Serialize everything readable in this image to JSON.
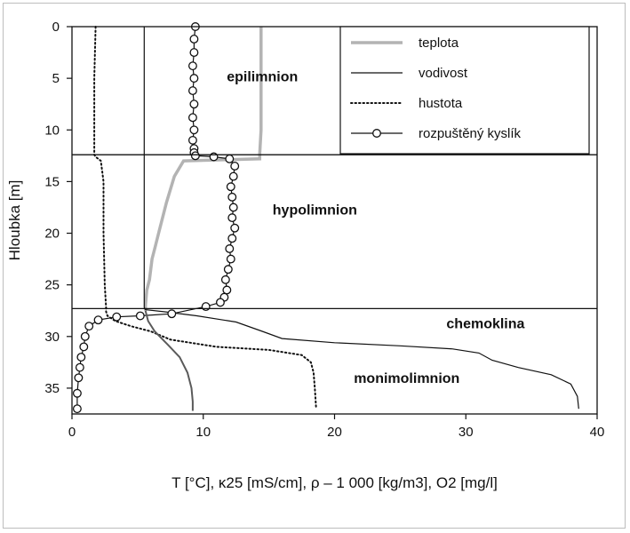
{
  "chart_data": {
    "type": "line",
    "xlabel": "T [°C], κ25 [mS/cm], ρ – 1 000 [kg/m3], O2 [mg/l]",
    "ylabel": "Hloubka [m]",
    "xlim": [
      0,
      40
    ],
    "ylim": [
      0,
      37.5
    ],
    "y_inverted": true,
    "x_ticks": [
      "0",
      "10",
      "20",
      "30",
      "40"
    ],
    "y_ticks": [
      "0",
      "5",
      "10",
      "15",
      "20",
      "25",
      "30",
      "35"
    ],
    "boundaries": [
      12.4,
      27.3
    ],
    "zones": [
      {
        "label": "epilimnion",
        "x": 14.5,
        "y": 5.3
      },
      {
        "label": "hypolimnion",
        "x": 18.5,
        "y": 18.2
      },
      {
        "label": "chemoklina",
        "x": 31.5,
        "y": 29.2
      },
      {
        "label": "monimolimnion",
        "x": 25.5,
        "y": 34.5
      }
    ],
    "legend_position": "top-right",
    "series": [
      {
        "name": "teplota",
        "style": "thick-gray",
        "color": "#b3b3b3",
        "x": [
          14.4,
          14.4,
          14.4,
          14.3,
          14.3,
          8.5,
          7.8,
          7.2,
          6.6,
          6.3,
          6.1,
          5.9,
          5.7,
          5.6,
          5.6,
          5.6
        ],
        "y": [
          0,
          5,
          10,
          12.3,
          12.8,
          13.0,
          14.5,
          17.0,
          20.0,
          21.5,
          22.5,
          24.5,
          25.5,
          27.0,
          27.3,
          27.5
        ]
      },
      {
        "name": "vodivost",
        "style": "thin-solid",
        "color": "#111111",
        "x": [
          5.5,
          5.5,
          5.5,
          5.6,
          7.0,
          9.5,
          12.5,
          14.5,
          16.0,
          20.0,
          25.0,
          29.0,
          31.0,
          32.0,
          34.0,
          36.5,
          38.0,
          38.5,
          38.6
        ],
        "y": [
          0,
          12.4,
          27.2,
          27.4,
          27.6,
          28.0,
          28.6,
          29.5,
          30.2,
          30.6,
          30.9,
          31.2,
          31.6,
          32.3,
          33.0,
          33.7,
          34.6,
          35.8,
          37.0
        ]
      },
      {
        "name": "hustota",
        "style": "dotted",
        "color": "#111111",
        "x": [
          1.8,
          1.7,
          1.7,
          1.7,
          1.8,
          2.2,
          2.4,
          2.4,
          2.5,
          2.6,
          2.6,
          2.7,
          3.3,
          4.5,
          6.0,
          7.5,
          11.0,
          15.0,
          17.5,
          18.2,
          18.4,
          18.5,
          18.6
        ],
        "y": [
          0,
          5,
          10,
          12.4,
          12.6,
          13.0,
          15.0,
          20.0,
          25.0,
          27.2,
          27.6,
          28.0,
          28.5,
          29.0,
          29.5,
          30.3,
          31.0,
          31.3,
          31.8,
          32.5,
          33.5,
          35.0,
          37.0
        ]
      },
      {
        "name": "rozpuštěný kyslík",
        "style": "circle-markers",
        "color": "#111111",
        "x": [
          9.4,
          9.3,
          9.3,
          9.2,
          9.3,
          9.2,
          9.3,
          9.2,
          9.3,
          9.2,
          9.3,
          9.3,
          9.4,
          10.8,
          12.0,
          12.4,
          12.3,
          12.1,
          12.2,
          12.3,
          12.2,
          12.4,
          12.2,
          12.0,
          12.1,
          11.9,
          11.7,
          11.8,
          11.6,
          11.3,
          10.2,
          7.6,
          5.2,
          3.4,
          2.0,
          1.3,
          1.0,
          0.9,
          0.7,
          0.6,
          0.5,
          0.4,
          0.4
        ],
        "y": [
          0,
          1.2,
          2.5,
          3.8,
          5.0,
          6.2,
          7.5,
          8.8,
          10.0,
          11.0,
          11.8,
          12.2,
          12.5,
          12.6,
          12.8,
          13.5,
          14.5,
          15.5,
          16.5,
          17.5,
          18.5,
          19.5,
          20.5,
          21.5,
          22.5,
          23.5,
          24.5,
          25.5,
          26.2,
          26.7,
          27.1,
          27.8,
          28.0,
          28.1,
          28.4,
          29.0,
          30.0,
          31.0,
          32.0,
          33.0,
          34.0,
          35.5,
          37.0
        ]
      },
      {
        "name": "",
        "style": "dark-gray-lower-temperature",
        "color": "#5a5a5a",
        "x": [
          5.6,
          5.8,
          6.3,
          7.3,
          8.2,
          8.8,
          9.1,
          9.2,
          9.2
        ],
        "y": [
          27.5,
          28.5,
          29.5,
          30.8,
          32.0,
          33.5,
          35.0,
          36.3,
          37.2
        ]
      }
    ]
  },
  "legend": [
    {
      "label": "teplota",
      "style": "thick-gray"
    },
    {
      "label": "vodivost",
      "style": "thin-solid"
    },
    {
      "label": "hustota",
      "style": "dotted"
    },
    {
      "label": "rozpuštěný kyslík",
      "style": "circle-markers"
    }
  ]
}
